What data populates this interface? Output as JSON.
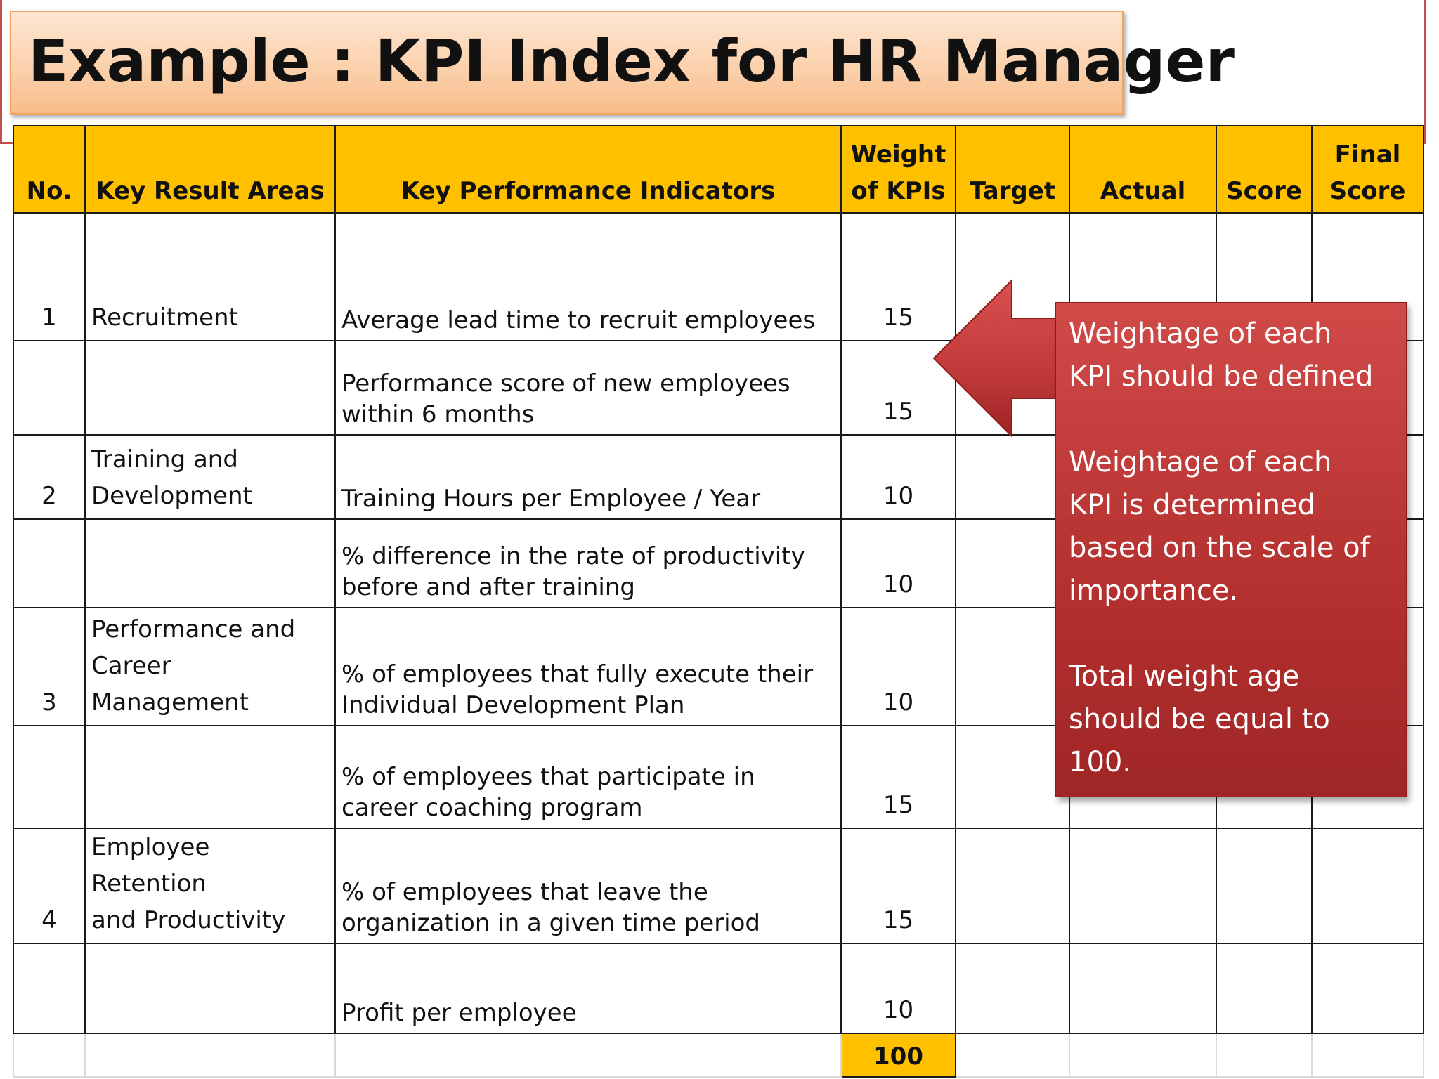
{
  "title": "Example : KPI Index for HR Manager",
  "colors": {
    "header_fill": "#ffc000",
    "title_fill": "#fbd1ad",
    "title_border": "#f0a25e",
    "callout_fill": "#b3302f",
    "arrow_fill": "#c0393a"
  },
  "table": {
    "headers": {
      "no": "No.",
      "kra": "Key Result Areas",
      "kpi": "Key Performance Indicators",
      "weight": "Weight\nof KPIs",
      "target": "Target",
      "actual": "Actual",
      "score": "Score",
      "final_score": "Final\nScore"
    },
    "rows": [
      {
        "no": "1",
        "kra": "Recruitment",
        "kpi": "Average lead time to recruit employees",
        "weight": "15"
      },
      {
        "no": "",
        "kra": "",
        "kpi": "Performance score of new employees\nwithin 6 months",
        "weight": "15"
      },
      {
        "no": "2",
        "kra": "Training and\nDevelopment",
        "kpi": "Training Hours per Employee / Year",
        "weight": "10"
      },
      {
        "no": "",
        "kra": "",
        "kpi": "% difference in the rate of productivity\nbefore and after training",
        "weight": "10"
      },
      {
        "no": "3",
        "kra": "Performance and\nCareer\nManagement",
        "kpi": "% of employees that fully execute their\nIndividual Development Plan",
        "weight": "10"
      },
      {
        "no": "",
        "kra": "",
        "kpi": "% of employees that participate in\ncareer coaching program",
        "weight": "15"
      },
      {
        "no": "4",
        "kra": "Employee Retention\nand Productivity",
        "kpi": "% of employees that leave the\norganization in a given time period",
        "weight": "15"
      },
      {
        "no": "",
        "kra": "",
        "kpi": "Profit per employee",
        "weight": "10"
      }
    ],
    "total_weight": "100"
  },
  "callout": {
    "paragraphs": [
      "Weightage  of each\nKPI should be defined",
      "Weightage of each\nKPI is determined\nbased on the scale of\nimportance.",
      "Total weight age\nshould be equal to\n100."
    ]
  }
}
